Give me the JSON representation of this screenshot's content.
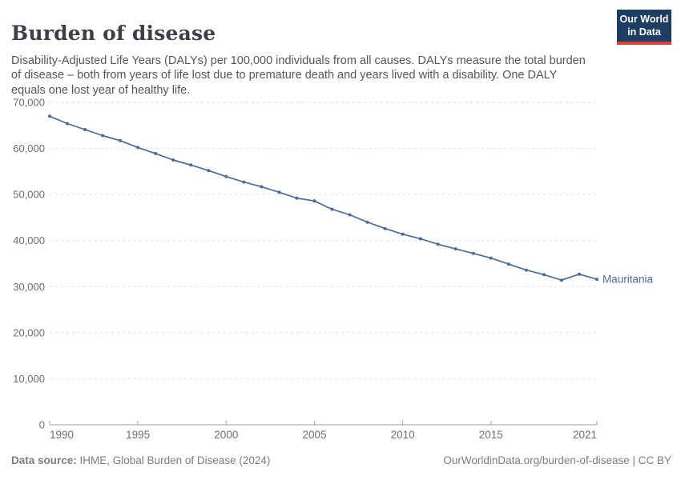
{
  "header": {
    "title": "Burden of disease",
    "subtitle": "Disability-Adjusted Life Years (DALYs) per 100,000 individuals from all causes. DALYs measure the total burden of disease – both from years of life lost due to premature death and years lived with a disability. One DALY equals one lost year of healthy life.",
    "logo": {
      "line1": "Our World",
      "line2": "in Data",
      "bg_color": "#1d3d63",
      "accent_color": "#e0403e"
    }
  },
  "footer": {
    "datasource_label": "Data source:",
    "datasource_value": " IHME, Global Burden of Disease (2024)",
    "link": "OurWorldinData.org/burden-of-disease | CC BY"
  },
  "chart_data": {
    "type": "line",
    "title": "Burden of disease",
    "xlabel": "",
    "ylabel": "DALYs per 100,000 individuals",
    "xlim": [
      1990,
      2021
    ],
    "ylim": [
      0,
      70000
    ],
    "x_ticks": [
      1990,
      1995,
      2000,
      2005,
      2010,
      2015,
      2021
    ],
    "y_ticks": [
      0,
      10000,
      20000,
      30000,
      40000,
      50000,
      60000,
      70000
    ],
    "grid": "horizontal-dashed",
    "legend_position": "end-of-line-label",
    "colors": {
      "line": "#4C6A9C",
      "grid": "#dedede",
      "axis": "#a3a3a3",
      "tick_text": "#6e6e6e"
    },
    "series": [
      {
        "name": "Mauritania",
        "color": "#4C6A9C",
        "x": [
          1990,
          1991,
          1992,
          1993,
          1994,
          1995,
          1996,
          1997,
          1998,
          1999,
          2000,
          2001,
          2002,
          2003,
          2004,
          2005,
          2006,
          2007,
          2008,
          2009,
          2010,
          2011,
          2012,
          2013,
          2014,
          2015,
          2016,
          2017,
          2018,
          2019,
          2020,
          2021
        ],
        "values": [
          67000,
          65400,
          64100,
          62800,
          61700,
          60200,
          58900,
          57500,
          56400,
          55200,
          53900,
          52700,
          51700,
          50500,
          49200,
          48600,
          46800,
          45600,
          44000,
          42600,
          41400,
          40400,
          39200,
          38200,
          37200,
          36200,
          34900,
          33600,
          32600,
          31400,
          32700,
          31600
        ]
      }
    ]
  }
}
